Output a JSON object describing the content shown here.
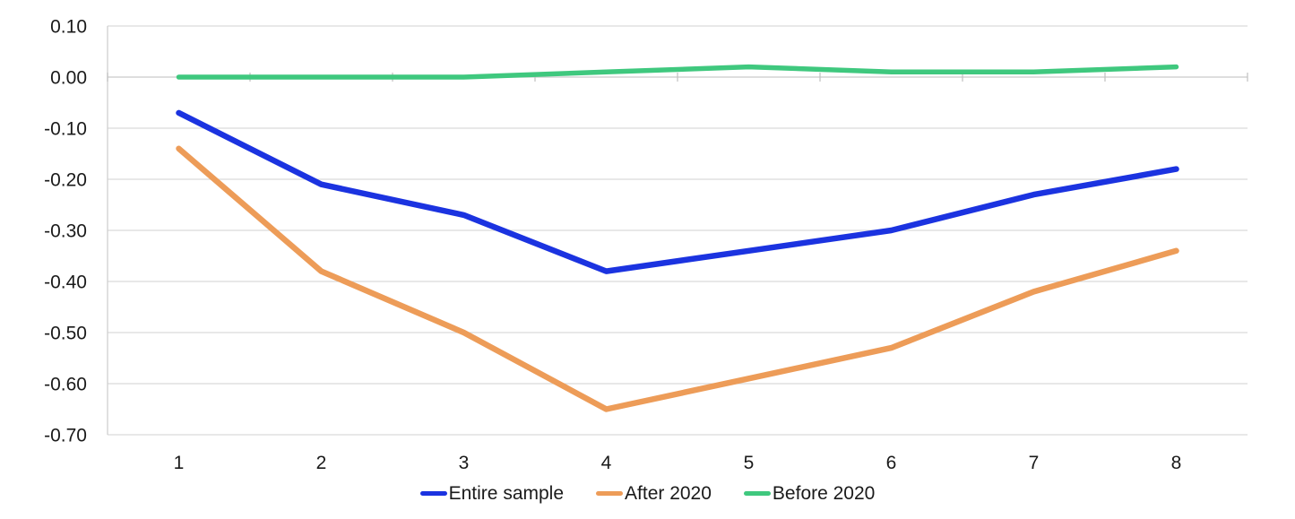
{
  "chart_data": {
    "type": "line",
    "x": [
      1,
      2,
      3,
      4,
      5,
      6,
      7,
      8
    ],
    "x_tick_labels": [
      "1",
      "2",
      "3",
      "4",
      "5",
      "6",
      "7",
      "8"
    ],
    "series": [
      {
        "name": "Entire sample",
        "color": "#1b33e0",
        "values": [
          -0.07,
          -0.21,
          -0.27,
          -0.38,
          -0.34,
          -0.3,
          -0.23,
          -0.18
        ]
      },
      {
        "name": "After 2020",
        "color": "#ed9c58",
        "values": [
          -0.14,
          -0.38,
          -0.5,
          -0.65,
          -0.59,
          -0.53,
          -0.42,
          -0.34
        ]
      },
      {
        "name": "Before 2020",
        "color": "#3fc87e",
        "values": [
          0.0,
          0.0,
          0.0,
          0.01,
          0.02,
          0.01,
          0.01,
          0.02
        ]
      }
    ],
    "ylim": [
      -0.7,
      0.1
    ],
    "ytick_values": [
      0.1,
      0.0,
      -0.1,
      -0.2,
      -0.3,
      -0.4,
      -0.5,
      -0.6,
      -0.7
    ],
    "ytick_labels": [
      "0.10",
      "0.00",
      "-0.10",
      "-0.20",
      "-0.30",
      "-0.40",
      "-0.50",
      "-0.60",
      "-0.70"
    ],
    "grid": true,
    "legend_position": "bottom-center"
  },
  "colors": {
    "gridline": "#d9d9d9",
    "axis_line": "#d0d0d0",
    "tick_mark": "#bfbfbf",
    "label_text": "#1a1a1a"
  }
}
